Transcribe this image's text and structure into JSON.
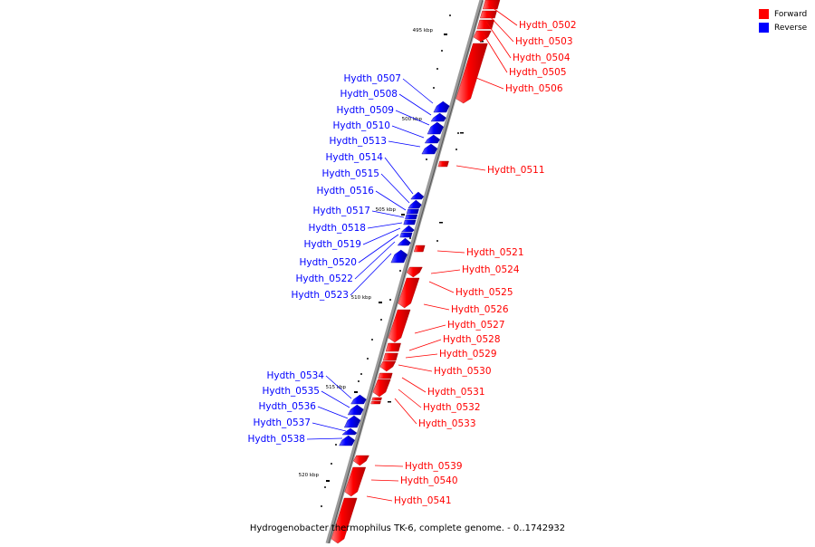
{
  "genome_title": "Hydrogenobacter thermophilus TK-6, complete genome. - 0..1742932",
  "legend": {
    "forward": "Forward",
    "reverse": "Reverse",
    "forward_color": "#ff0000",
    "reverse_color": "#0000ff"
  },
  "scale_labels": [
    "495 kbp",
    "500 kbp",
    "505 kbp",
    "510 kbp",
    "515 kbp",
    "520 kbp"
  ],
  "forward_genes": [
    "Hydth_0502",
    "Hydth_0503",
    "Hydth_0504",
    "Hydth_0505",
    "Hydth_0506",
    "Hydth_0511",
    "Hydth_0521",
    "Hydth_0524",
    "Hydth_0525",
    "Hydth_0526",
    "Hydth_0527",
    "Hydth_0528",
    "Hydth_0529",
    "Hydth_0530",
    "Hydth_0531",
    "Hydth_0532",
    "Hydth_0533",
    "Hydth_0539",
    "Hydth_0540",
    "Hydth_0541"
  ],
  "reverse_genes": [
    "Hydth_0507",
    "Hydth_0508",
    "Hydth_0509",
    "Hydth_0510",
    "Hydth_0513",
    "Hydth_0514",
    "Hydth_0515",
    "Hydth_0516",
    "Hydth_0517",
    "Hydth_0518",
    "Hydth_0519",
    "Hydth_0520",
    "Hydth_0522",
    "Hydth_0523",
    "Hydth_0534",
    "Hydth_0535",
    "Hydth_0536",
    "Hydth_0537",
    "Hydth_0538"
  ]
}
